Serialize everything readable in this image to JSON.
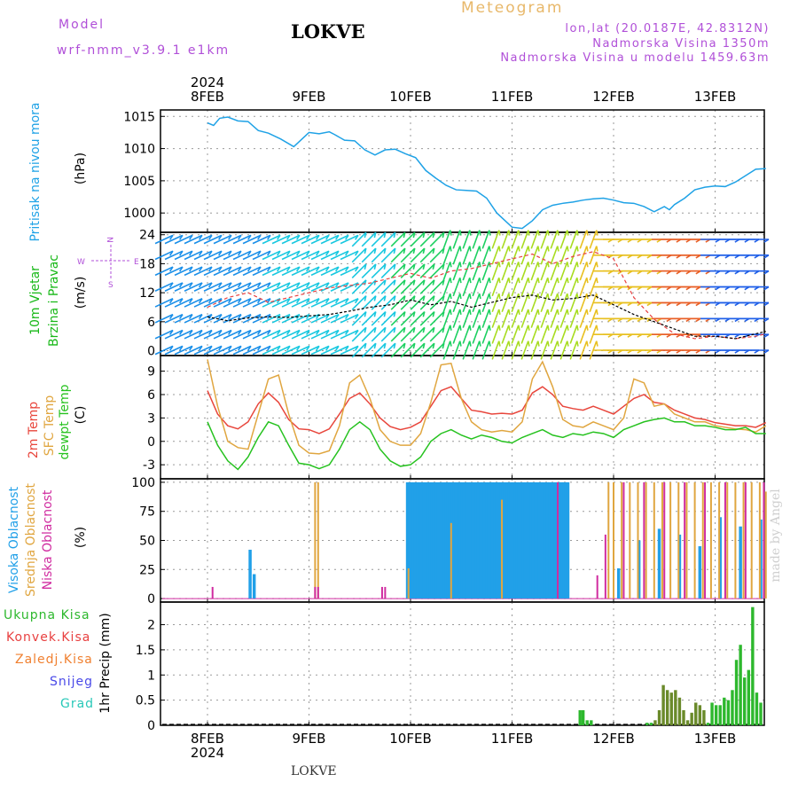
{
  "header": {
    "model_label": "Model",
    "model_name": "wrf-nmm_v3.9.1 e1km",
    "station": "LOKVE",
    "product": "Meteogram",
    "coords": "lon,lat (20.0187E, 42.8312N)",
    "elevation": "Nadmorska Visina 1350m",
    "model_elevation": "Nadmorska Visina u modelu 1459.63m"
  },
  "x_axis": {
    "year": "2024",
    "days": [
      "8FEB",
      "9FEB",
      "10FEB",
      "11FEB",
      "12FEB",
      "13FEB"
    ]
  },
  "footer": {
    "station": "LOKVE",
    "watermark": "made by Angel"
  },
  "panel_labels": {
    "pressure": [
      "Pritisak na nivou mora",
      "(hPa)"
    ],
    "wind": [
      "10m Vjetar",
      "Brzina i Pravac",
      "(m/s)"
    ],
    "wind_rose": {
      "w": "W",
      "e": "E",
      "n": "N",
      "s": "S"
    },
    "temp": [
      "2m Temp",
      "SFC Temp",
      "dewpt Temp",
      "(C)"
    ],
    "cloud": [
      "Visoka Oblacnost",
      "Srednja Oblacnost",
      "Niska Oblacnost",
      "(%)"
    ],
    "precip_legend": [
      "Ukupna Kisa",
      "Konvek.Kisa",
      "Zaledj.Kisa",
      "Snijeg",
      "Grad"
    ],
    "precip_unit": "1hr Precip (mm)"
  },
  "colors": {
    "pressure": "#1fa2e6",
    "temp2m": "#e8463c",
    "sfc": "#e0a640",
    "dew": "#26c21f",
    "high_cloud": "#21a0e8",
    "mid_cloud": "#e0a640",
    "low_cloud": "#d02ca0",
    "total_rain": "#2db82d",
    "conv_rain": "#e84040",
    "frz_rain": "#f08030",
    "snow": "#4a4ae8",
    "hail": "#28c8b8",
    "label_pressure": "#1fa2e6",
    "label_wind": "#18b818",
    "label_purple": "#b04fd8"
  },
  "chart_data": [
    {
      "type": "line",
      "panel": "pressure",
      "ylabel": "(hPa)",
      "ylim": [
        997,
        1016
      ],
      "yticks": [
        1000,
        1005,
        1010,
        1015
      ],
      "x": [
        0.0,
        0.06,
        0.12,
        0.2,
        0.3,
        0.4,
        0.5,
        0.6,
        0.72,
        0.85,
        1.0,
        1.1,
        1.2,
        1.25,
        1.35,
        1.45,
        1.55,
        1.65,
        1.75,
        1.85,
        1.95,
        2.05,
        2.15,
        2.25,
        2.35,
        2.45,
        2.55,
        2.65,
        2.75,
        2.85,
        3.0,
        3.1,
        3.2,
        3.3,
        3.4,
        3.5,
        3.6,
        3.7,
        3.8,
        3.9,
        4.0,
        4.1,
        4.2,
        4.3,
        4.4,
        4.5,
        4.55,
        4.6,
        4.7,
        4.8,
        4.9,
        5.0,
        5.1,
        5.2,
        5.3,
        5.4,
        5.5
      ],
      "series": [
        {
          "name": "Pritisak",
          "values": [
            1014.0,
            1013.6,
            1014.7,
            1014.9,
            1014.3,
            1014.2,
            1012.8,
            1012.4,
            1011.5,
            1010.3,
            1012.5,
            1012.3,
            1012.6,
            1012.2,
            1011.3,
            1011.2,
            1009.8,
            1009.0,
            1009.8,
            1009.9,
            1009.2,
            1008.6,
            1006.6,
            1005.4,
            1004.3,
            1003.6,
            1003.5,
            1003.4,
            1002.3,
            1000.0,
            997.8,
            997.6,
            998.8,
            1000.5,
            1001.2,
            1001.5,
            1001.7,
            1002.0,
            1002.2,
            1002.3,
            1002.0,
            1001.6,
            1001.5,
            1001.0,
            1000.2,
            1001.0,
            1000.5,
            1001.3,
            1002.3,
            1003.6,
            1004.0,
            1004.2,
            1004.1,
            1004.8,
            1005.8,
            1006.8,
            1006.9
          ]
        }
      ]
    },
    {
      "type": "line",
      "panel": "wind",
      "ylabel": "(m/s)",
      "ylim": [
        -1,
        24.5
      ],
      "yticks": [
        0,
        6,
        12,
        18,
        24
      ],
      "x": [
        0.0,
        0.2,
        0.4,
        0.6,
        0.8,
        1.0,
        1.2,
        1.4,
        1.6,
        1.8,
        2.0,
        2.2,
        2.4,
        2.6,
        2.8,
        3.0,
        3.2,
        3.4,
        3.6,
        3.8,
        4.0,
        4.2,
        4.4,
        4.6,
        4.8,
        5.0,
        5.2,
        5.4,
        5.5
      ],
      "series": [
        {
          "name": "speed",
          "values": [
            7.0,
            6.2,
            6.8,
            7.0,
            6.9,
            7.2,
            7.5,
            8.2,
            9.0,
            9.5,
            10.5,
            9.5,
            10.2,
            9.0,
            10.0,
            11.0,
            11.5,
            10.5,
            10.8,
            11.5,
            9.5,
            7.5,
            6.0,
            4.5,
            3.0,
            3.0,
            2.5,
            3.5,
            4.0
          ]
        },
        {
          "name": "gust",
          "values": [
            9.0,
            11.0,
            12.0,
            10.0,
            11.0,
            12.0,
            13.0,
            13.5,
            14.0,
            15.0,
            16.0,
            15.0,
            16.5,
            17.0,
            18.0,
            19.0,
            20.0,
            18.0,
            19.5,
            20.5,
            19.0,
            11.0,
            6.5,
            3.5,
            2.5,
            3.0,
            2.5,
            3.0,
            3.5
          ]
        }
      ]
    },
    {
      "type": "line",
      "panel": "temperature",
      "ylabel": "(C)",
      "ylim": [
        -4.8,
        11
      ],
      "yticks": [
        -3,
        0,
        3,
        6,
        9
      ],
      "x": [
        0.0,
        0.1,
        0.2,
        0.3,
        0.4,
        0.5,
        0.6,
        0.7,
        0.8,
        0.9,
        1.0,
        1.1,
        1.2,
        1.3,
        1.4,
        1.5,
        1.6,
        1.7,
        1.8,
        1.9,
        2.0,
        2.1,
        2.2,
        2.3,
        2.4,
        2.5,
        2.6,
        2.7,
        2.8,
        2.9,
        3.0,
        3.1,
        3.2,
        3.3,
        3.4,
        3.5,
        3.6,
        3.7,
        3.8,
        3.9,
        4.0,
        4.1,
        4.2,
        4.3,
        4.4,
        4.5,
        4.6,
        4.7,
        4.8,
        4.9,
        5.0,
        5.1,
        5.2,
        5.3,
        5.4,
        5.5
      ],
      "series": [
        {
          "name": "2m Temp",
          "values": [
            6.5,
            3.5,
            2.0,
            1.6,
            2.5,
            4.8,
            6.2,
            5.0,
            2.8,
            1.6,
            1.5,
            1.0,
            1.6,
            3.5,
            5.5,
            6.2,
            4.8,
            3.0,
            1.9,
            1.5,
            1.8,
            2.5,
            4.5,
            6.5,
            7.0,
            5.5,
            4.0,
            3.8,
            3.5,
            3.6,
            3.5,
            4.0,
            6.2,
            7.0,
            6.0,
            4.5,
            4.2,
            4.0,
            4.5,
            4.0,
            3.5,
            4.5,
            5.5,
            6.0,
            5.0,
            4.8,
            4.0,
            3.5,
            3.0,
            2.8,
            2.4,
            2.2,
            2.0,
            2.0,
            1.8,
            2.4
          ]
        },
        {
          "name": "SFC Temp",
          "values": [
            10.5,
            4.5,
            0.0,
            -0.8,
            -1.0,
            3.5,
            8.0,
            8.5,
            3.5,
            -0.5,
            -1.5,
            -1.6,
            -1.2,
            2.0,
            7.5,
            8.5,
            5.5,
            1.5,
            0.0,
            -0.5,
            -0.5,
            1.0,
            5.0,
            9.8,
            10.0,
            5.5,
            2.5,
            1.5,
            1.2,
            1.4,
            1.2,
            2.5,
            8.0,
            10.2,
            7.0,
            2.8,
            2.0,
            1.8,
            2.5,
            2.0,
            1.5,
            3.0,
            8.0,
            7.5,
            4.5,
            4.8,
            3.5,
            3.0,
            2.5,
            2.5,
            2.0,
            1.8,
            1.6,
            1.5,
            1.2,
            2.0
          ]
        },
        {
          "name": "dewpt Temp",
          "values": [
            2.5,
            -0.5,
            -2.5,
            -3.6,
            -2.0,
            0.5,
            2.5,
            2.0,
            -0.5,
            -2.8,
            -3.0,
            -3.5,
            -3.0,
            -1.0,
            1.5,
            2.5,
            1.5,
            -1.0,
            -2.5,
            -3.2,
            -3.0,
            -2.0,
            0.0,
            1.0,
            1.5,
            0.8,
            0.3,
            0.8,
            0.5,
            0.0,
            -0.2,
            0.5,
            1.0,
            1.5,
            0.8,
            0.5,
            1.0,
            0.8,
            1.2,
            1.0,
            0.5,
            1.5,
            2.0,
            2.5,
            2.8,
            3.0,
            2.5,
            2.5,
            2.0,
            2.0,
            1.8,
            1.5,
            1.5,
            1.8,
            1.0,
            1.0
          ]
        }
      ]
    },
    {
      "type": "bar",
      "panel": "cloud",
      "ylabel": "(%)",
      "ylim": [
        -3,
        103
      ],
      "yticks": [
        0,
        25,
        50,
        75,
        100
      ],
      "series": [
        {
          "name": "Visoka Oblacnost",
          "x": [
            0.42,
            0.46,
            1.97,
            1.99,
            2.01,
            2.03,
            2.05,
            2.07,
            2.09,
            2.11,
            2.13,
            2.15,
            2.17,
            2.19,
            2.21,
            2.23,
            2.25,
            2.27,
            2.29,
            2.31,
            2.33,
            2.35,
            2.37,
            2.39,
            2.41,
            2.43,
            2.45,
            2.47,
            2.49,
            2.51,
            2.53,
            2.55,
            2.57,
            2.59,
            2.61,
            2.63,
            2.65,
            2.67,
            2.69,
            2.71,
            2.73,
            2.75,
            2.77,
            2.79,
            2.81,
            2.83,
            2.85,
            2.87,
            2.89,
            2.91,
            2.93,
            2.95,
            2.97,
            2.99,
            3.01,
            3.03,
            3.05,
            3.07,
            3.09,
            3.11,
            3.13,
            3.15,
            3.17,
            3.19,
            3.21,
            3.23,
            3.25,
            3.27,
            3.29,
            3.31,
            3.33,
            3.35,
            3.37,
            3.39,
            3.41,
            3.43,
            3.45,
            3.47,
            3.49,
            3.51,
            3.53,
            3.55,
            4.05,
            4.25,
            4.45,
            4.65,
            4.85,
            5.05,
            5.25,
            5.45
          ],
          "values": [
            42,
            21,
            100,
            100,
            100,
            100,
            100,
            100,
            100,
            100,
            100,
            100,
            100,
            100,
            100,
            100,
            100,
            100,
            100,
            100,
            100,
            100,
            100,
            100,
            100,
            100,
            100,
            100,
            100,
            100,
            100,
            100,
            100,
            100,
            100,
            100,
            100,
            100,
            100,
            100,
            100,
            100,
            100,
            100,
            100,
            100,
            100,
            100,
            100,
            100,
            100,
            100,
            100,
            100,
            100,
            100,
            100,
            100,
            100,
            100,
            100,
            100,
            100,
            100,
            100,
            100,
            100,
            100,
            100,
            100,
            100,
            100,
            100,
            100,
            100,
            100,
            100,
            100,
            100,
            100,
            100,
            100,
            26,
            50,
            60,
            55,
            45,
            70,
            62,
            68
          ]
        },
        {
          "name": "Srednja Oblacnost",
          "x": [
            1.06,
            1.09,
            1.98,
            2.4,
            2.9,
            3.95,
            4.0,
            4.08,
            4.16,
            4.24,
            4.32,
            4.4,
            4.48,
            4.56,
            4.64,
            4.72,
            4.8,
            4.88,
            4.96,
            5.04,
            5.12,
            5.2,
            5.28,
            5.36,
            5.44,
            5.5
          ],
          "values": [
            100,
            100,
            26,
            65,
            85,
            100,
            100,
            100,
            100,
            100,
            100,
            100,
            100,
            100,
            100,
            100,
            100,
            100,
            100,
            100,
            100,
            100,
            100,
            100,
            100,
            92
          ]
        },
        {
          "name": "Niska Oblacnost",
          "x": [
            0.05,
            1.06,
            1.09,
            1.72,
            1.75,
            3.45,
            3.84,
            3.92,
            4.1,
            4.3,
            4.5,
            4.7,
            4.9,
            5.1,
            5.3,
            5.48
          ],
          "values": [
            10,
            10,
            10,
            10,
            10,
            100,
            20,
            55,
            100,
            100,
            100,
            100,
            100,
            100,
            100,
            100
          ]
        }
      ]
    },
    {
      "type": "bar",
      "panel": "precipitation",
      "ylabel": "1hr Precip (mm)",
      "ylim": [
        0,
        2.45
      ],
      "yticks": [
        0,
        0.5,
        1,
        1.5,
        2
      ],
      "series": [
        {
          "name": "Ukupna Kisa",
          "x": [
            3.67,
            3.7,
            3.74,
            3.78,
            4.33,
            4.37,
            4.41,
            4.45,
            4.49,
            4.53,
            4.57,
            4.61,
            4.65,
            4.69,
            4.73,
            4.77,
            4.81,
            4.85,
            4.89,
            4.93,
            4.97,
            5.01,
            5.05,
            5.09,
            5.13,
            5.17,
            5.21,
            5.25,
            5.29,
            5.33,
            5.37,
            5.41,
            5.45
          ],
          "values": [
            0.3,
            0.3,
            0.1,
            0.1,
            0.05,
            0.05,
            0.1,
            0.3,
            0.8,
            0.7,
            0.65,
            0.7,
            0.55,
            0.3,
            0.1,
            0.25,
            0.45,
            0.4,
            0.3,
            0.05,
            0.45,
            0.4,
            0.4,
            0.55,
            0.5,
            0.7,
            1.3,
            1.6,
            0.95,
            1.1,
            2.35,
            0.65,
            0.45
          ]
        }
      ]
    }
  ]
}
